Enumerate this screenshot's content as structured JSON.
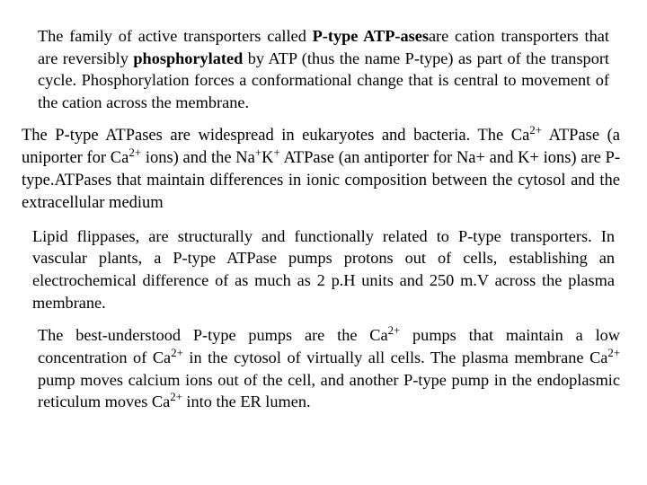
{
  "document": {
    "background_color": "#ffffff",
    "text_color": "#000000",
    "font_family": "Times New Roman",
    "font_size_pt": 14,
    "paragraphs": {
      "p1": {
        "html": "The family of active transporters called <b>P-type ATP-ases</b>are cation transporters that are reversibly <b>phosphorylated</b> by ATP (thus the name P-type) as part of the transport cycle. Phosphorylation forces a conformational change that is central to movement of the cation across the membrane."
      },
      "p2": {
        "html": "The P-type ATPases are widespread in  eukaryotes and bacteria. The Ca<sup>2+</sup> ATPase (a uniporter for Ca<sup>2+</sup> ions) and the Na<sup>+</sup>K<sup>+</sup> ATPase (an antiporter for Na+ and K+ ions) are P-type.ATPases that maintain differences in ionic composition between the cytosol and the extracellular medium"
      },
      "p3": {
        "html": "Lipid flippases, are structurally and functionally related to P-type transporters. In vascular plants, a P-type ATPase pumps protons out of cells, establishing an electrochemical difference of as much as 2 p.H units and 250 m.V across the plasma membrane."
      },
      "p4": {
        "html": "The best-understood P-type pumps are the Ca<sup>2+</sup> pumps that maintain a low concentration of Ca<sup>2+</sup> in the cytosol of  virtually  all  cells.  The  plasma membrane Ca<sup>2+</sup> pump moves calcium ions out of the cell, and another P-type pump in the endoplasmic reticulum moves Ca<sup>2+</sup> into the ER lumen."
      }
    }
  }
}
